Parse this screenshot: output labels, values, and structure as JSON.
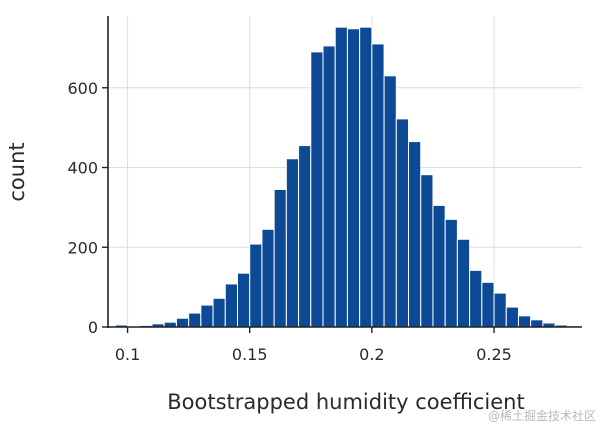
{
  "chart_data": {
    "type": "bar",
    "xlabel": "Bootstrapped humidity coefficient",
    "ylabel": "count",
    "xlim": [
      0.092,
      0.286
    ],
    "ylim": [
      0,
      780
    ],
    "bin_width": 0.005,
    "bin_starts": [
      0.095,
      0.1,
      0.105,
      0.11,
      0.115,
      0.12,
      0.125,
      0.13,
      0.135,
      0.14,
      0.145,
      0.15,
      0.155,
      0.16,
      0.165,
      0.17,
      0.175,
      0.18,
      0.185,
      0.19,
      0.195,
      0.2,
      0.205,
      0.21,
      0.215,
      0.22,
      0.225,
      0.23,
      0.235,
      0.24,
      0.245,
      0.25,
      0.255,
      0.26,
      0.265,
      0.27,
      0.275,
      0.28
    ],
    "values": [
      5,
      1,
      4,
      8,
      12,
      22,
      35,
      55,
      72,
      108,
      135,
      208,
      245,
      345,
      422,
      455,
      690,
      705,
      752,
      748,
      752,
      710,
      630,
      522,
      465,
      382,
      305,
      270,
      220,
      142,
      112,
      85,
      50,
      28,
      18,
      10,
      5,
      3
    ],
    "x_ticks": [
      0.1,
      0.15,
      0.2,
      0.25
    ],
    "x_tick_labels": [
      "0.1",
      "0.15",
      "0.2",
      "0.25"
    ],
    "y_ticks": [
      0,
      200,
      400,
      600
    ],
    "y_tick_labels": [
      "0",
      "200",
      "400",
      "600"
    ],
    "grid": true,
    "bar_color": "#0d4a96",
    "bar_edge_color": "#ffffff",
    "grid_color": "#d9dee3",
    "axis_color": "#222222"
  },
  "watermark": "@稀土掘金技术社区"
}
